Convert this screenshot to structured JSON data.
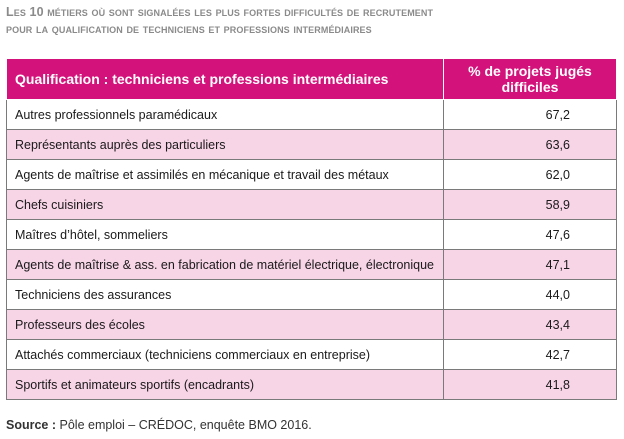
{
  "title": {
    "line1": "Les 10 métiers où sont signalées les plus fortes difficultés de recrutement",
    "line2": "pour la qualification de techniciens et professions intermédiaires"
  },
  "table": {
    "headers": {
      "qualification": "Qualification : techniciens et professions intermédiaires",
      "percent": "% de projets jugés difficiles"
    },
    "rows": [
      {
        "label": "Autres professionnels paramédicaux",
        "value": "67,2"
      },
      {
        "label": "Représentants auprès des particuliers",
        "value": "63,6"
      },
      {
        "label": "Agents de maîtrise et assimilés en mécanique et travail des métaux",
        "value": "62,0"
      },
      {
        "label": "Chefs cuisiniers",
        "value": "58,9"
      },
      {
        "label": "Maîtres d’hôtel, sommeliers",
        "value": "47,6"
      },
      {
        "label": "Agents de maîtrise & ass. en fabrication de matériel électrique, électronique",
        "value": "47,1"
      },
      {
        "label": "Techniciens des assurances",
        "value": "44,0"
      },
      {
        "label": "Professeurs des écoles",
        "value": "43,4"
      },
      {
        "label": "Attachés commerciaux (techniciens commerciaux en entreprise)",
        "value": "42,7"
      },
      {
        "label": "Sportifs et animateurs sportifs (encadrants)",
        "value": "41,8"
      }
    ]
  },
  "source": {
    "label": "Source :",
    "text": "Pôle emploi – CRÉDOC, enquête BMO 2016."
  },
  "colors": {
    "header_bg": "#d3137b",
    "row_alt_bg": "#f7d4e6",
    "title_color": "#8a8a8a"
  }
}
